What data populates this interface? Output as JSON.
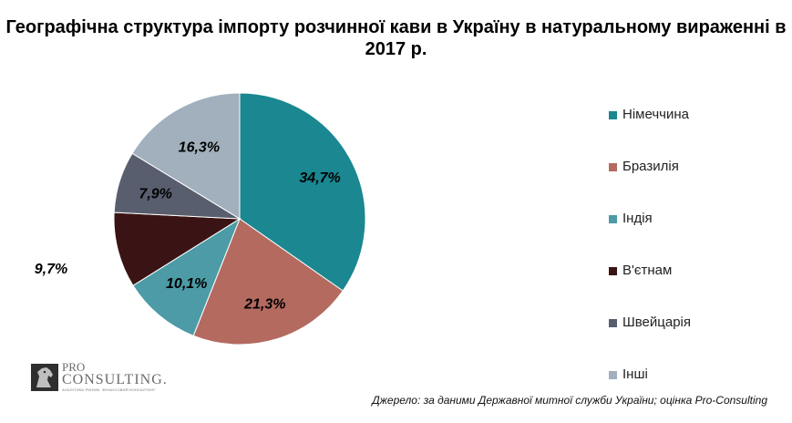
{
  "title": "Географічна структура імпорту розчинної кави в Україну в натуральному вираженні в 2017 р.",
  "chart_data": {
    "type": "pie",
    "title": "Географічна структура імпорту розчинної кави в Україну в натуральному вираженні в 2017 р.",
    "labels": [
      "Німеччина",
      "Бразилія",
      "Індія",
      "В'єтнам",
      "Швейцарія",
      "Інші"
    ],
    "values": [
      34.7,
      21.3,
      10.1,
      9.7,
      7.9,
      16.3
    ],
    "value_labels": [
      "34,7%",
      "21,3%",
      "10,1%",
      "9,7%",
      "7,9%",
      "16,3%"
    ],
    "colors": [
      "#1a8791",
      "#b46a5f",
      "#4c9ba6",
      "#3a1414",
      "#595e6e",
      "#a1b0bc"
    ],
    "legend_position": "right",
    "start_angle": "12 o'clock",
    "direction": "clockwise"
  },
  "logo": {
    "line1": "PRO",
    "line2": "CONSULTING.",
    "tagline": "АНАЛІТИКА РИНКІВ. ФІНАНСОВИЙ КОНСАЛТИНГ"
  },
  "source": "Джерело: за даними Державної митної служби України; оцінка Pro-Consulting"
}
